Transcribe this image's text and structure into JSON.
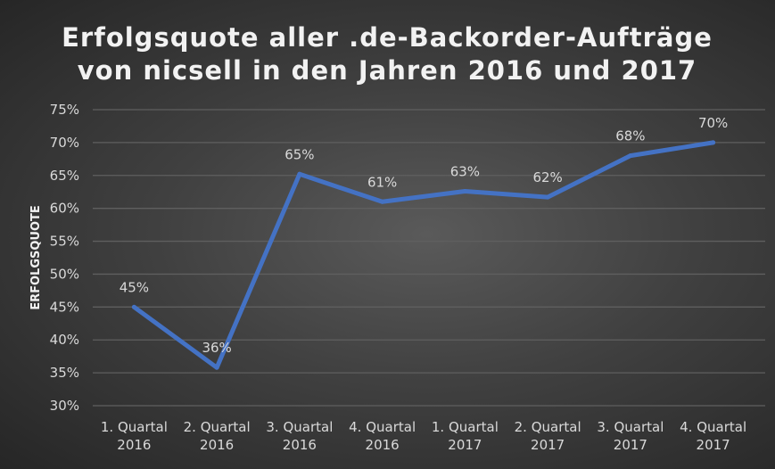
{
  "chart_data": {
    "type": "line",
    "title_lines": [
      "Erfolgsquote aller .de-Backorder-Aufträge",
      "von nicsell in den Jahren 2016 und 2017"
    ],
    "xlabel": "",
    "ylabel": "ERFOLGSQUOTE",
    "categories": [
      [
        "1. Quartal",
        "2016"
      ],
      [
        "2. Quartal",
        "2016"
      ],
      [
        "3. Quartal",
        "2016"
      ],
      [
        "4. Quartal",
        "2016"
      ],
      [
        "1. Quartal",
        "2017"
      ],
      [
        "2. Quartal",
        "2017"
      ],
      [
        "3. Quartal",
        "2017"
      ],
      [
        "4. Quartal",
        "2017"
      ]
    ],
    "series": [
      {
        "values": [
          45,
          35.8,
          65.2,
          61,
          62.6,
          61.7,
          68,
          70
        ],
        "data_labels": [
          "45%",
          "36%",
          "65%",
          "61%",
          "63%",
          "62%",
          "68%",
          "70%"
        ],
        "color": "#4472C4"
      }
    ],
    "ylim": [
      30,
      75
    ],
    "yticks": [
      30,
      35,
      40,
      45,
      50,
      55,
      60,
      65,
      70,
      75
    ],
    "ytick_format": "%",
    "grid": true,
    "legend": "none",
    "background": "dark radial gradient"
  }
}
